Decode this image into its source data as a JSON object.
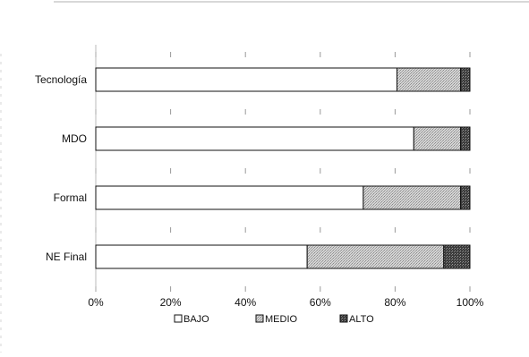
{
  "chart_data": {
    "type": "bar",
    "orientation": "horizontal",
    "stacked": true,
    "percent": true,
    "categories": [
      "Tecnología",
      "MDO",
      "Formal",
      "NE Final"
    ],
    "series": [
      {
        "name": "BAJO",
        "values": [
          80.5,
          85.0,
          71.5,
          56.5
        ],
        "color": "#ffffff"
      },
      {
        "name": "MEDIO",
        "values": [
          17.0,
          12.5,
          26.0,
          36.5
        ],
        "color": "#c9c9c9"
      },
      {
        "name": "ALTO",
        "values": [
          2.5,
          2.5,
          2.5,
          7.0
        ],
        "color": "#555555"
      }
    ],
    "x_ticks": [
      "0%",
      "20%",
      "40%",
      "60%",
      "80%",
      "100%"
    ],
    "xlim": [
      0,
      100
    ],
    "grid": false,
    "legend_position": "bottom",
    "title": "",
    "xlabel": "",
    "ylabel": ""
  }
}
